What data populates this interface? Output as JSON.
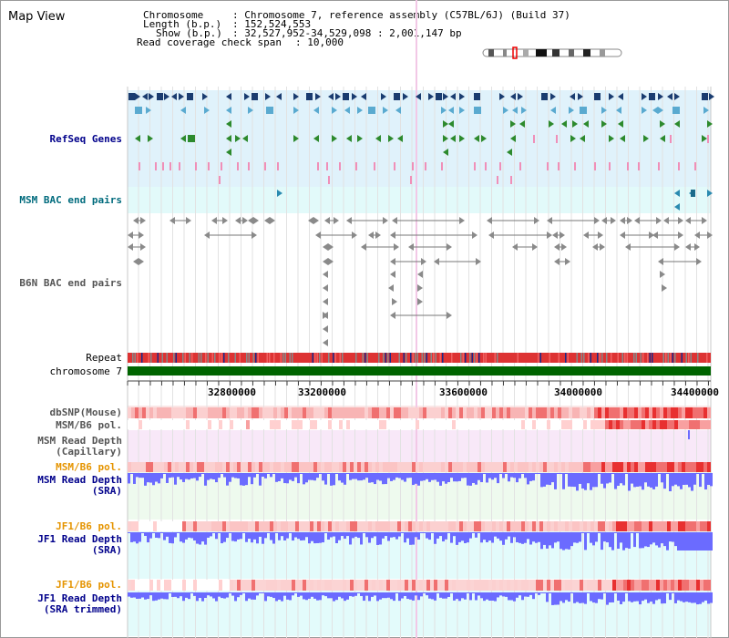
{
  "view": {
    "title": "Map View"
  },
  "info": {
    "chromosome_key": "Chromosome",
    "chromosome_val": ": Chromosome 7, reference assembly (C57BL/6J) (Build 37)",
    "length_key": "Length (b.p.)",
    "length_val": ": 152,524,553",
    "show_key": "Show (b.p.)",
    "show_val": ": 32,527,952-34,529,098 : 2,001,147 bp",
    "coverage_key": "Read coverage check span",
    "coverage_val": ": 10,000"
  },
  "tracks": {
    "refseq": "RefSeq Genes",
    "msm_bac": "MSM BAC end pairs",
    "b6n_bac": "B6N BAC end pairs",
    "repeat": "Repeat",
    "chromosome": "chromosome 7",
    "dbsnp": "dbSNP(Mouse)",
    "msm_b6_pol1": "MSM/B6 pol.",
    "msm_depth_cap1": "MSM Read Depth",
    "msm_depth_cap2": "(Capillary)",
    "msm_b6_pol2": "MSM/B6 pol.",
    "msm_depth_sra1": "MSM Read Depth",
    "msm_depth_sra2": "(SRA)",
    "jf1_pol1": "JF1/B6 pol.",
    "jf1_depth1": "JF1 Read Depth",
    "jf1_depth2": "(SRA)",
    "jf1_pol2": "JF1/B6 pol.",
    "jf1_trim1": "JF1 Read Depth",
    "jf1_trim2": "(SRA trimmed)"
  },
  "axis": {
    "ticks": [
      "32800000",
      "33200000",
      "33600000",
      "34000000",
      "34400000"
    ]
  },
  "colors": {
    "refseq_band": "#e0f2fb",
    "msm_bac_band": "#e2fafa",
    "gene_dark": "#1a3c70",
    "gene_light": "#5aaad0",
    "gene_green": "#2d8a2d",
    "gene_pink": "#f08fb8",
    "chromosome_bar": "#006400",
    "depth_blue": "#6b6bff",
    "pol_red": "#ee3333",
    "label_blue": "#00008b",
    "label_teal": "#006b7d",
    "label_orange": "#e59400",
    "label_gray": "#555555"
  }
}
